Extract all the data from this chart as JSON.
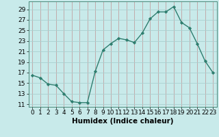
{
  "x": [
    0,
    1,
    2,
    3,
    4,
    5,
    6,
    7,
    8,
    9,
    10,
    11,
    12,
    13,
    14,
    15,
    16,
    17,
    18,
    19,
    20,
    21,
    22,
    23
  ],
  "y": [
    16.5,
    16.0,
    14.8,
    14.6,
    13.0,
    11.5,
    11.3,
    11.3,
    17.2,
    21.3,
    22.5,
    23.5,
    23.2,
    22.7,
    24.5,
    27.2,
    28.5,
    28.5,
    29.5,
    26.5,
    25.5,
    22.5,
    19.2,
    17.0
  ],
  "line_color": "#2e7d6e",
  "marker": "D",
  "marker_size": 2.2,
  "line_width": 1.0,
  "background_color": "#c8eaea",
  "grid_color": "#aacfcf",
  "grid_color2": "#c0a0a0",
  "xlabel": "Humidex (Indice chaleur)",
  "xlabel_fontsize": 7.5,
  "tick_fontsize": 6.5,
  "xlim": [
    -0.5,
    23.5
  ],
  "ylim": [
    10.5,
    30.5
  ],
  "yticks": [
    11,
    13,
    15,
    17,
    19,
    21,
    23,
    25,
    27,
    29
  ],
  "xticks": [
    0,
    1,
    2,
    3,
    4,
    5,
    6,
    7,
    8,
    9,
    10,
    11,
    12,
    13,
    14,
    15,
    16,
    17,
    18,
    19,
    20,
    21,
    22,
    23
  ]
}
